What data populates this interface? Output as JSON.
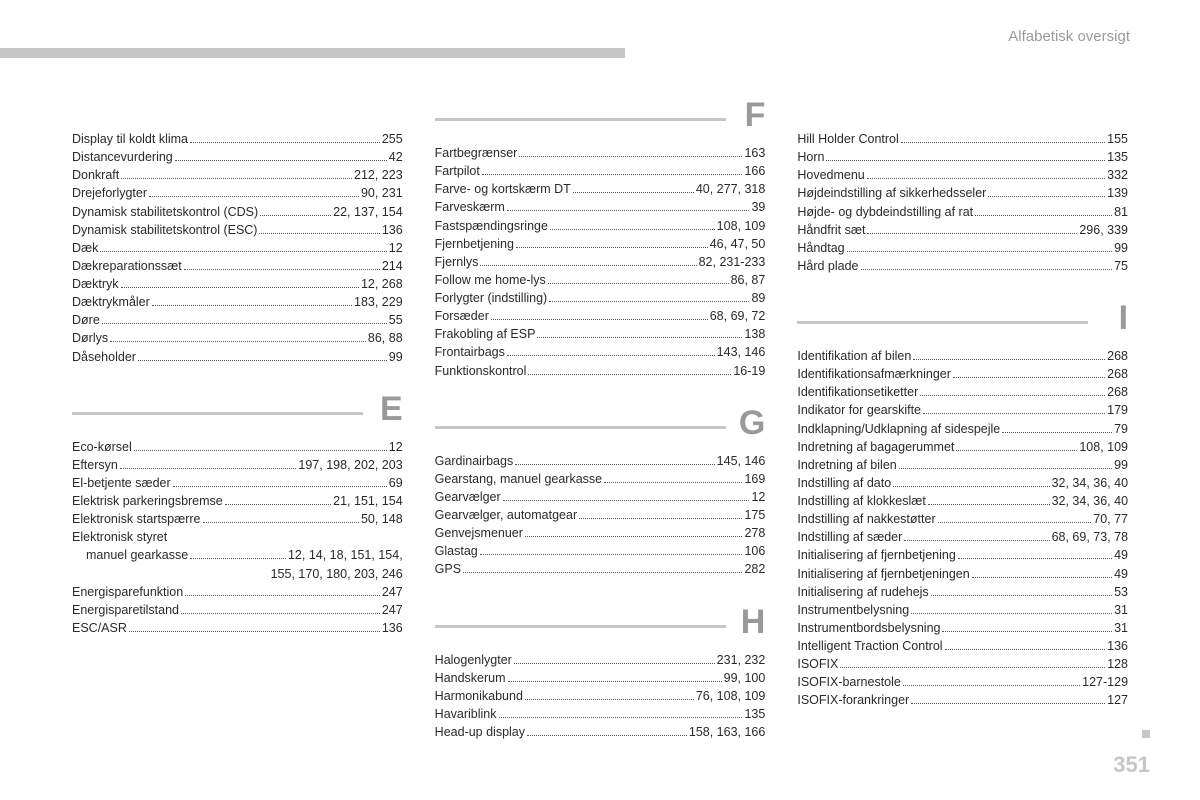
{
  "header": {
    "title": "Alfabetisk oversigt"
  },
  "page_number": "351",
  "columns": [
    {
      "blocks": [
        {
          "letter": null,
          "entries": [
            {
              "label": "Display til koldt klima",
              "pages": "255"
            },
            {
              "label": "Distancevurdering",
              "pages": "42"
            },
            {
              "label": "Donkraft",
              "pages": "212, 223"
            },
            {
              "label": "Drejeforlygter",
              "pages": "90, 231"
            },
            {
              "label": "Dynamisk stabilitetskontrol (CDS)",
              "pages": "22, 137, 154"
            },
            {
              "label": "Dynamisk stabilitetskontrol (ESC)",
              "pages": "136"
            },
            {
              "label": "Dæk",
              "pages": "12"
            },
            {
              "label": "Dækreparationssæt",
              "pages": "214"
            },
            {
              "label": "Dæktryk",
              "pages": "12, 268"
            },
            {
              "label": "Dæktrykmåler",
              "pages": "183, 229"
            },
            {
              "label": "Døre",
              "pages": "55"
            },
            {
              "label": "Dørlys",
              "pages": "86, 88"
            },
            {
              "label": "Dåseholder",
              "pages": "99"
            }
          ]
        },
        {
          "letter": "E",
          "entries": [
            {
              "label": "Eco-kørsel",
              "pages": "12"
            },
            {
              "label": "Eftersyn",
              "pages": "197, 198, 202, 203"
            },
            {
              "label": "El-betjente sæder",
              "pages": "69"
            },
            {
              "label": "Elektrisk parkeringsbremse",
              "pages": "21, 151, 154"
            },
            {
              "label": "Elektronisk startspærre",
              "pages": "50, 148"
            },
            {
              "label": "Elektronisk styret",
              "pages": "",
              "nodots": true
            },
            {
              "label": "manuel gearkasse",
              "pages": "12, 14, 18, 151, 154,",
              "indent": true
            },
            {
              "label": "",
              "pages": "155, 170, 180, 203, 246",
              "cont": true
            },
            {
              "label": "Energisparefunktion",
              "pages": "247"
            },
            {
              "label": "Energisparetilstand",
              "pages": "247"
            },
            {
              "label": "ESC/ASR",
              "pages": "136"
            }
          ]
        }
      ]
    },
    {
      "blocks": [
        {
          "letter": "F",
          "entries": [
            {
              "label": "Fartbegrænser",
              "pages": "163"
            },
            {
              "label": "Fartpilot",
              "pages": "166"
            },
            {
              "label": "Farve- og kortskærm DT",
              "pages": "40, 277, 318"
            },
            {
              "label": "Farveskærm",
              "pages": "39"
            },
            {
              "label": "Fastspændingsringe",
              "pages": "108, 109"
            },
            {
              "label": "Fjernbetjening",
              "pages": "46, 47, 50"
            },
            {
              "label": "Fjernlys",
              "pages": "82, 231-233"
            },
            {
              "label": "Follow me home-lys",
              "pages": "86, 87"
            },
            {
              "label": "Forlygter (indstilling)",
              "pages": "89"
            },
            {
              "label": "Forsæder",
              "pages": "68, 69, 72"
            },
            {
              "label": "Frakobling af ESP",
              "pages": "138"
            },
            {
              "label": "Frontairbags",
              "pages": "143, 146"
            },
            {
              "label": "Funktionskontrol",
              "pages": "16-19"
            }
          ]
        },
        {
          "letter": "G",
          "entries": [
            {
              "label": "Gardinairbags",
              "pages": "145, 146"
            },
            {
              "label": "Gearstang, manuel gearkasse",
              "pages": "169"
            },
            {
              "label": "Gearvælger",
              "pages": "12"
            },
            {
              "label": "Gearvælger, automatgear",
              "pages": "175"
            },
            {
              "label": "Genvejsmenuer",
              "pages": "278"
            },
            {
              "label": "Glastag",
              "pages": "106"
            },
            {
              "label": "GPS",
              "pages": "282"
            }
          ]
        },
        {
          "letter": "H",
          "entries": [
            {
              "label": "Halogenlygter",
              "pages": "231, 232"
            },
            {
              "label": "Handskerum",
              "pages": "99, 100"
            },
            {
              "label": "Harmonikabund",
              "pages": "76, 108, 109"
            },
            {
              "label": "Havariblink",
              "pages": "135"
            },
            {
              "label": "Head-up display",
              "pages": "158, 163, 166"
            }
          ]
        }
      ]
    },
    {
      "blocks": [
        {
          "letter": null,
          "entries": [
            {
              "label": "Hill Holder Control",
              "pages": "155"
            },
            {
              "label": "Horn",
              "pages": "135"
            },
            {
              "label": "Hovedmenu",
              "pages": "332"
            },
            {
              "label": "Højdeindstilling af sikkerhedsseler",
              "pages": "139"
            },
            {
              "label": "Højde- og dybdeindstilling af rat",
              "pages": "81"
            },
            {
              "label": "Håndfrit sæt",
              "pages": "296, 339"
            },
            {
              "label": "Håndtag",
              "pages": "99"
            },
            {
              "label": "Hård plade",
              "pages": "75"
            }
          ]
        },
        {
          "letter": "I",
          "entries": [
            {
              "label": "Identifikation af bilen",
              "pages": "268"
            },
            {
              "label": "Identifikationsafmærkninger",
              "pages": "268"
            },
            {
              "label": "Identifikationsetiketter",
              "pages": "268"
            },
            {
              "label": "Indikator for gearskifte",
              "pages": "179"
            },
            {
              "label": "Indklapning/Udklapning af sidespejle",
              "pages": "79"
            },
            {
              "label": "Indretning af bagagerummet",
              "pages": "108, 109"
            },
            {
              "label": "Indretning af bilen",
              "pages": "99"
            },
            {
              "label": "Indstilling af dato",
              "pages": "32, 34, 36, 40"
            },
            {
              "label": "Indstilling af klokkeslæt",
              "pages": "32, 34, 36, 40"
            },
            {
              "label": "Indstilling af nakkestøtter",
              "pages": "70, 77"
            },
            {
              "label": "Indstilling af sæder",
              "pages": "68, 69, 73, 78"
            },
            {
              "label": "Initialisering af fjernbetjening",
              "pages": "49"
            },
            {
              "label": "Initialisering af fjernbetjeningen",
              "pages": "49"
            },
            {
              "label": "Initialisering af rudehejs",
              "pages": "53"
            },
            {
              "label": "Instrumentbelysning",
              "pages": "31"
            },
            {
              "label": "Instrumentbordsbelysning",
              "pages": "31"
            },
            {
              "label": "Intelligent Traction Control",
              "pages": "136"
            },
            {
              "label": "ISOFIX",
              "pages": "128"
            },
            {
              "label": "ISOFIX-barnestole",
              "pages": "127-129"
            },
            {
              "label": "ISOFIX-forankringer",
              "pages": "127"
            }
          ]
        }
      ]
    }
  ]
}
